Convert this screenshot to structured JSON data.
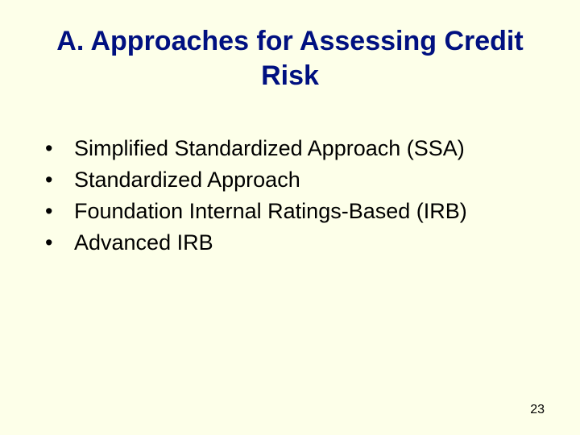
{
  "slide": {
    "title": "A.  Approaches for Assessing Credit Risk",
    "bullets": [
      "Simplified Standardized Approach (SSA)",
      "Standardized Approach",
      "Foundation Internal Ratings-Based (IRB)",
      "Advanced IRB"
    ],
    "pageNumber": "23",
    "colors": {
      "background": "#fdffe9",
      "title": "#001080",
      "text": "#000000"
    },
    "typography": {
      "titleFontSize": 34,
      "bulletFontSize": 27,
      "pageNumFontSize": 16,
      "fontFamily": "Arial"
    }
  }
}
